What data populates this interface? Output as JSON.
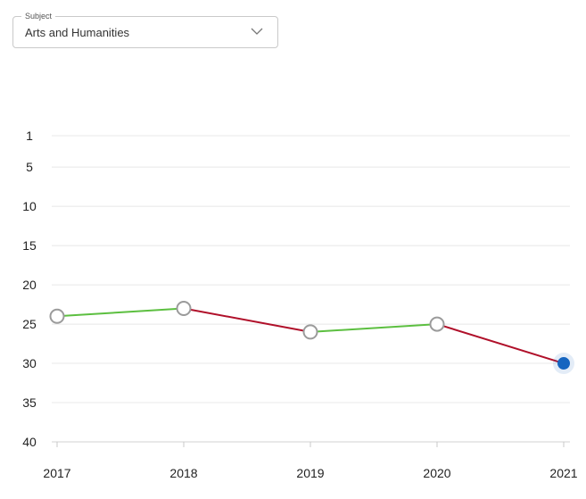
{
  "filter": {
    "legend": "Subject",
    "selected": "Arts and Humanities",
    "icon": "chevron-down-icon"
  },
  "colors": {
    "rise": "#5cbf40",
    "fall": "#b0102a",
    "current": "#1565c0",
    "grid": "#e8e8e8",
    "marker_border": "#9b9b9b"
  },
  "chart_data": {
    "type": "line",
    "x": [
      "2017",
      "2018",
      "2019",
      "2020",
      "2021"
    ],
    "series": [
      {
        "values": [
          24,
          23,
          26,
          25,
          30
        ]
      }
    ],
    "yticks": [
      "1",
      "5",
      "10",
      "15",
      "20",
      "25",
      "30",
      "35",
      "40"
    ],
    "ylim": [
      1,
      40
    ],
    "y_inverted": true,
    "grid": true,
    "highlight_point": "2021"
  }
}
